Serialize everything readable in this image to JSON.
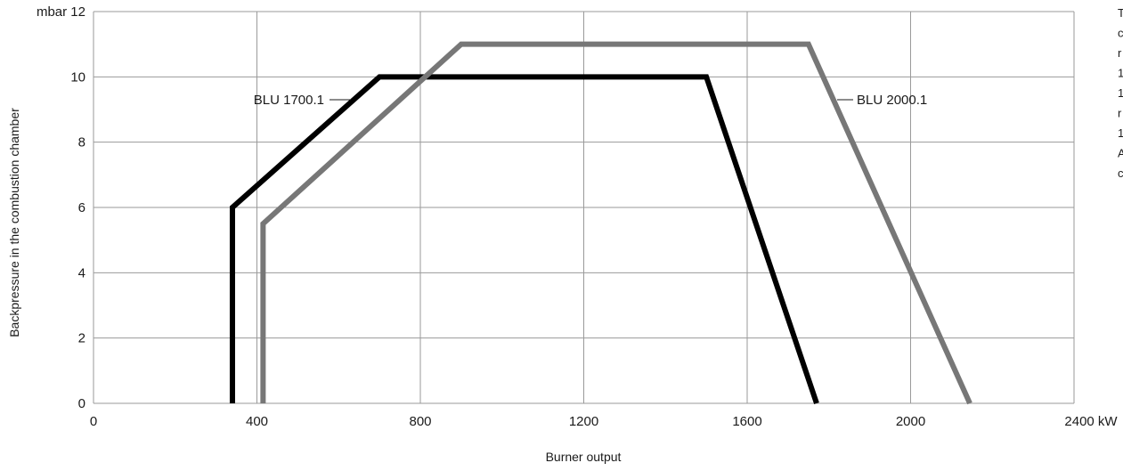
{
  "chart_data": {
    "type": "line",
    "title": "",
    "xlabel": "Burner output",
    "ylabel": "Backpressure in the combustion chamber",
    "x_unit": "kW",
    "y_unit": "mbar",
    "xlim": [
      0,
      2400
    ],
    "ylim": [
      0,
      12
    ],
    "x_ticks": [
      "0",
      "400",
      "800",
      "1200",
      "1600",
      "2000",
      "2400"
    ],
    "y_ticks": [
      "0",
      "2",
      "4",
      "6",
      "8",
      "10",
      "12"
    ],
    "grid": true,
    "series": [
      {
        "name": "BLU 1700.1",
        "color": "#000000",
        "points": [
          [
            340,
            0
          ],
          [
            340,
            6
          ],
          [
            700,
            10
          ],
          [
            1500,
            10
          ],
          [
            1770,
            0
          ]
        ]
      },
      {
        "name": "BLU 2000.1",
        "color": "#777777",
        "points": [
          [
            415,
            0
          ],
          [
            415,
            5.5
          ],
          [
            900,
            11
          ],
          [
            1750,
            11
          ],
          [
            2145,
            0
          ]
        ]
      }
    ],
    "margin_text": [
      "T",
      "c",
      "r",
      "1",
      "1",
      "r",
      "1",
      "A",
      "c"
    ]
  }
}
